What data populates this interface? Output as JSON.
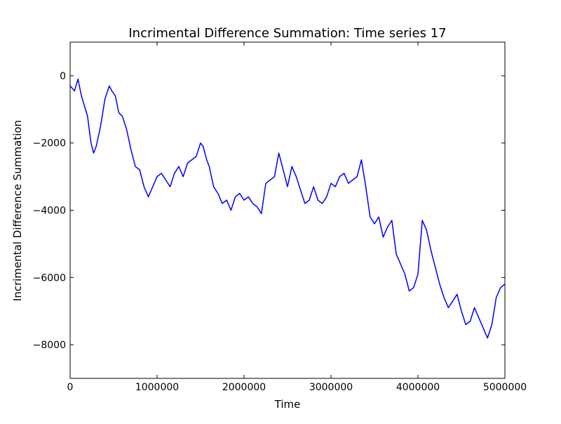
{
  "chart_data": {
    "type": "line",
    "title": "Incrimental Difference Summation: Time series 17",
    "xlabel": "Time",
    "ylabel": "Incrimental Difference Summation",
    "xlim": [
      0,
      5000000
    ],
    "ylim": [
      -9000,
      1000
    ],
    "xticks": [
      0,
      1000000,
      2000000,
      3000000,
      4000000,
      5000000
    ],
    "xtick_labels": [
      "0",
      "1000000",
      "2000000",
      "3000000",
      "4000000",
      "5000000"
    ],
    "yticks": [
      0,
      -2000,
      -4000,
      -6000,
      -8000
    ],
    "ytick_labels": [
      "0",
      "−2000",
      "−4000",
      "−6000",
      "−8000"
    ],
    "grid": false,
    "line_color": "#0000ff",
    "x": [
      0,
      50000,
      90000,
      130000,
      200000,
      240000,
      270000,
      300000,
      350000,
      400000,
      450000,
      480000,
      520000,
      560000,
      600000,
      650000,
      700000,
      750000,
      800000,
      850000,
      900000,
      950000,
      1000000,
      1050000,
      1100000,
      1150000,
      1200000,
      1250000,
      1300000,
      1350000,
      1400000,
      1450000,
      1500000,
      1530000,
      1570000,
      1600000,
      1650000,
      1700000,
      1750000,
      1800000,
      1850000,
      1900000,
      1950000,
      2000000,
      2050000,
      2100000,
      2150000,
      2200000,
      2250000,
      2300000,
      2350000,
      2400000,
      2450000,
      2500000,
      2550000,
      2600000,
      2650000,
      2700000,
      2750000,
      2800000,
      2850000,
      2900000,
      2950000,
      3000000,
      3050000,
      3100000,
      3150000,
      3200000,
      3250000,
      3300000,
      3350000,
      3400000,
      3450000,
      3500000,
      3550000,
      3600000,
      3650000,
      3700000,
      3750000,
      3800000,
      3850000,
      3900000,
      3950000,
      4000000,
      4050000,
      4100000,
      4150000,
      4200000,
      4250000,
      4300000,
      4350000,
      4400000,
      4450000,
      4500000,
      4550000,
      4600000,
      4650000,
      4700000,
      4750000,
      4800000,
      4850000,
      4900000,
      4950000,
      5000000
    ],
    "y": [
      -300,
      -450,
      -100,
      -600,
      -1200,
      -2000,
      -2300,
      -2100,
      -1500,
      -700,
      -300,
      -450,
      -600,
      -1100,
      -1200,
      -1600,
      -2200,
      -2700,
      -2800,
      -3300,
      -3600,
      -3300,
      -3000,
      -2900,
      -3100,
      -3300,
      -2900,
      -2700,
      -3000,
      -2600,
      -2500,
      -2400,
      -2000,
      -2100,
      -2500,
      -2700,
      -3300,
      -3500,
      -3800,
      -3700,
      -4000,
      -3600,
      -3500,
      -3700,
      -3600,
      -3800,
      -3900,
      -4100,
      -3200,
      -3100,
      -3000,
      -2300,
      -2800,
      -3300,
      -2700,
      -3000,
      -3400,
      -3800,
      -3700,
      -3300,
      -3700,
      -3800,
      -3600,
      -3200,
      -3300,
      -3000,
      -2900,
      -3200,
      -3100,
      -3000,
      -2500,
      -3300,
      -4200,
      -4400,
      -4200,
      -4800,
      -4500,
      -4300,
      -5300,
      -5600,
      -5900,
      -6400,
      -6300,
      -5900,
      -4300,
      -4600,
      -5200,
      -5700,
      -6200,
      -6600,
      -6900,
      -6700,
      -6500,
      -7000,
      -7400,
      -7300,
      -6900,
      -7200,
      -7500,
      -7800,
      -7400,
      -6600,
      -6300,
      -6200
    ]
  }
}
